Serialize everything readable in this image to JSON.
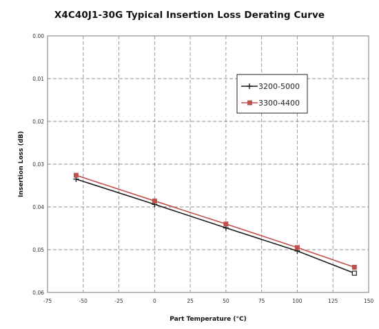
{
  "chart_data": {
    "type": "line",
    "title": "X4C40J1-30G Typical Insertion Loss Derating Curve",
    "xlabel": "Part Temperature (°C)",
    "ylabel": "Insertion Loss (dB)",
    "xlim": [
      -75,
      150
    ],
    "ylim": [
      0.0,
      0.06
    ],
    "y_inverted": true,
    "x_ticks": [
      -75,
      -50,
      -25,
      0,
      25,
      50,
      75,
      100,
      125,
      150
    ],
    "y_ticks": [
      0.0,
      0.01,
      0.02,
      0.03,
      0.04,
      0.05,
      0.06
    ],
    "x_tick_labels": [
      "-75",
      "-50",
      "-25",
      "0",
      "25",
      "50",
      "75",
      "100",
      "125",
      "150"
    ],
    "y_tick_labels": [
      "0.00",
      "0.01",
      "0.02",
      "0.03",
      "0.04",
      "0.05",
      "0.06"
    ],
    "grid": true,
    "legend_position": "top-right",
    "x": [
      -55,
      0,
      50,
      100,
      140
    ],
    "series": [
      {
        "name": "3200-5000",
        "values": [
          0.0335,
          0.0394,
          0.0449,
          0.0503,
          0.0555
        ],
        "color": "#1a1a1a",
        "marker": "plus"
      },
      {
        "name": "3300-4400",
        "values": [
          0.0326,
          0.0386,
          0.044,
          0.0495,
          0.0541
        ],
        "color": "#c0504d",
        "marker": "square"
      }
    ]
  }
}
